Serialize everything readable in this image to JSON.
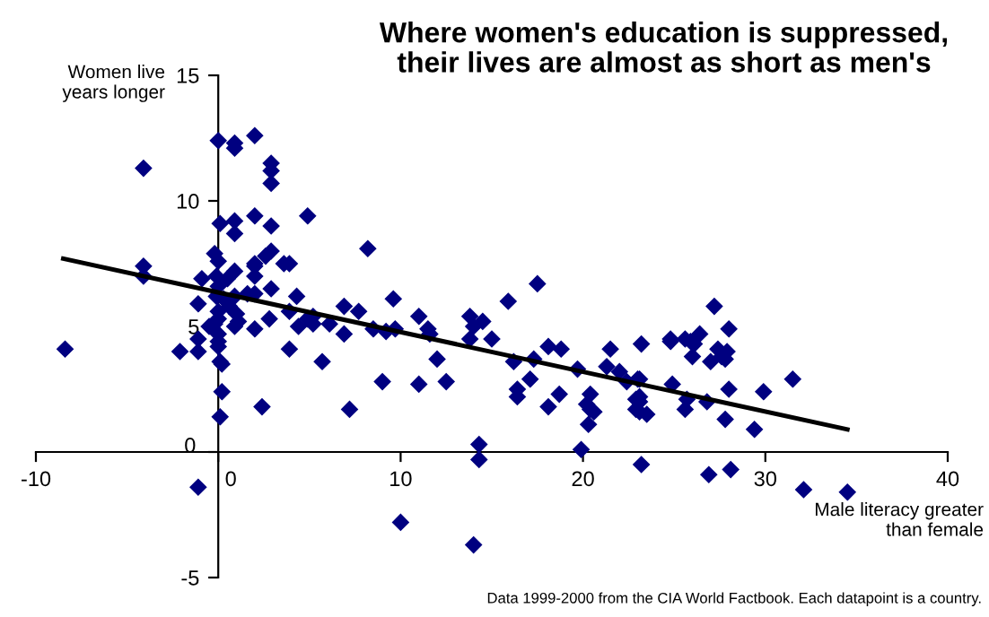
{
  "chart_data": {
    "type": "scatter",
    "title": "Where women's education is suppressed,\ntheir lives are almost as short as men's",
    "xlabel": "Male literacy greater\nthan female",
    "ylabel": "Women live\nyears longer",
    "annotations": [
      "Data 1999-2000 from the CIA World Factbook. Each datapoint is a country."
    ],
    "xlim": [
      -10,
      40
    ],
    "ylim": [
      -5,
      15
    ],
    "xticks": [
      -10,
      0,
      10,
      20,
      30,
      40
    ],
    "yticks": [
      -5,
      0,
      5,
      10,
      15
    ],
    "grid": false,
    "legend": false,
    "marker": "diamond",
    "series": [
      {
        "color": "#000080",
        "x": [
          -8.4,
          -4.1,
          -4.1,
          -4.1,
          -2.1,
          -1.1,
          -1.1,
          -1.1,
          -0.9,
          -0.5,
          -0.2,
          0,
          0,
          0,
          0,
          0,
          -0.1,
          0,
          -0.1,
          0,
          -0.2,
          0.1,
          0.2,
          0,
          0.1,
          0.2,
          0.1,
          0.5,
          0.3,
          0.6,
          0.9,
          0.9,
          0.9,
          0.9,
          0.9,
          0.9,
          1.0,
          0.9,
          1.1,
          2.0,
          2.0,
          2.0,
          2.0,
          2.0,
          2.0,
          2.0,
          1.6,
          2.4,
          2.6,
          2.9,
          2.9,
          2.9,
          2.9,
          2.9,
          2.9,
          2.8,
          3.6,
          3.9,
          3.9,
          3.9,
          4.3,
          4.4,
          4.9,
          5.2,
          4.9,
          5.2,
          5.7,
          6.1,
          6.9,
          6.9,
          7.2,
          7.7,
          8.2,
          8.5,
          9.0,
          9.2,
          9.6,
          9.7,
          10.0,
          11.0,
          11.0,
          11.5,
          11.6,
          12.0,
          12.5,
          13.8,
          13.8,
          14.0,
          14.5,
          14.3,
          14.3,
          14.0,
          15.0,
          15.9,
          16.2,
          16.4,
          16.4,
          17.3,
          17.1,
          17.5,
          18.1,
          18.8,
          18.1,
          18.7,
          19.7,
          19.9,
          20.4,
          20.2,
          20.4,
          20.6,
          20.3,
          21.5,
          21.3,
          22.0,
          22.4,
          23.1,
          23.1,
          23.1,
          23.1,
          23.2,
          23.2,
          22.9,
          22.9,
          23.5,
          23.0,
          24.8,
          24.8,
          24.9,
          25.6,
          25.9,
          26.1,
          26.4,
          26.0,
          25.7,
          25.6,
          26.8,
          27.2,
          27.0,
          27.4,
          27.6,
          27.8,
          27.9,
          28.0,
          28.0,
          27.8,
          26.9,
          28.1,
          29.4,
          29.9,
          31.5,
          32.1,
          34.5,
          -1.1
        ],
        "values": [
          4.1,
          11.3,
          7.4,
          7.0,
          4.0,
          4.0,
          4.5,
          5.9,
          6.9,
          5.0,
          5.1,
          4.7,
          4.4,
          4.2,
          5.3,
          5.6,
          6.2,
          6.6,
          7.0,
          7.6,
          7.9,
          3.6,
          3.5,
          12.4,
          9.1,
          2.4,
          1.4,
          6.9,
          6.1,
          5.8,
          12.3,
          12.1,
          9.2,
          8.7,
          7.2,
          6.2,
          5.5,
          5.0,
          5.2,
          12.6,
          9.4,
          7.5,
          7.4,
          7.0,
          4.9,
          6.3,
          6.3,
          1.8,
          7.8,
          11.5,
          11.2,
          10.7,
          9.0,
          8.0,
          6.5,
          5.3,
          7.5,
          7.5,
          5.6,
          4.1,
          6.2,
          5.0,
          9.4,
          5.4,
          5.3,
          5.1,
          3.6,
          5.1,
          5.8,
          4.7,
          1.7,
          5.6,
          8.1,
          4.9,
          2.8,
          4.8,
          6.1,
          4.9,
          -2.8,
          5.4,
          2.7,
          4.9,
          4.7,
          3.7,
          2.8,
          5.4,
          4.5,
          5.0,
          5.2,
          0.3,
          -0.3,
          -3.7,
          4.5,
          6.0,
          3.6,
          2.5,
          2.2,
          3.7,
          2.9,
          6.7,
          4.2,
          4.1,
          1.8,
          2.3,
          3.3,
          0.1,
          2.3,
          1.9,
          1.7,
          1.6,
          1.1,
          4.1,
          3.4,
          3.2,
          2.8,
          2.9,
          2.0,
          1.6,
          2.2,
          4.3,
          -0.5,
          2.1,
          1.7,
          1.5,
          2.9,
          4.5,
          4.4,
          2.7,
          4.5,
          4.4,
          4.3,
          4.7,
          3.8,
          2.1,
          1.7,
          2.0,
          5.8,
          3.6,
          4.1,
          3.8,
          3.7,
          4.0,
          4.9,
          2.5,
          1.3,
          -0.9,
          -0.7,
          0.9,
          2.4,
          2.9,
          -1.5,
          -1.6,
          -1.4
        ]
      },
      {
        "type": "line",
        "color": "#000000",
        "marker": "none",
        "x": [
          -8.5,
          34.5
        ],
        "values": [
          7.7,
          0.9
        ]
      }
    ]
  }
}
